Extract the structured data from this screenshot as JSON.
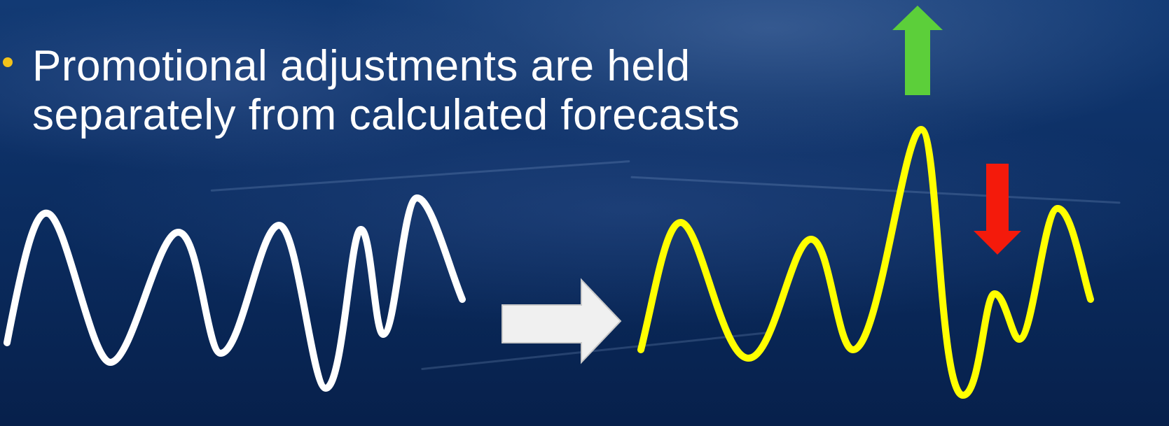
{
  "slide": {
    "bullet_lines": [
      "Promotional adjustments are held",
      "separately from calculated forecasts"
    ]
  },
  "colors": {
    "text": "#ffffff",
    "bullet": "#f3c21a",
    "base_wave": "#ffffff",
    "adjusted_wave": "#ffff00",
    "up_arrow": "#5ccf3a",
    "down_arrow": "#f41a0b",
    "transform_arrow": "#f0f0f0"
  },
  "icons": {
    "transform": "right-arrow-icon",
    "increase": "up-arrow-icon",
    "decrease": "down-arrow-icon"
  }
}
